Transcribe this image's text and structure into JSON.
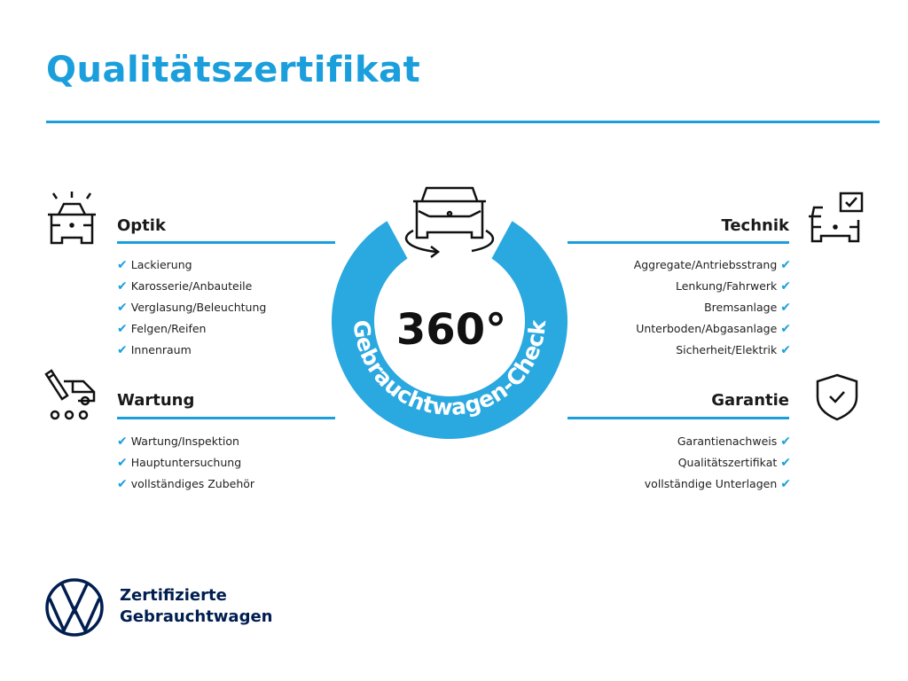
{
  "title": "Qualitätszertifikat",
  "colors": {
    "accent": "#1b9fdc",
    "ring": "#2aa8e0",
    "brand": "#001e50"
  },
  "badge": {
    "number": "360°",
    "ring_text": "Gebrauchtwagen-Check",
    "icon": "car-rotate-icon"
  },
  "sections": {
    "optik": {
      "heading": "Optik",
      "icon": "car-lights-icon",
      "items": [
        "Lackierung",
        "Karosserie/Anbauteile",
        "Verglasung/Beleuchtung",
        "Felgen/Reifen",
        "Innenraum"
      ]
    },
    "wartung": {
      "heading": "Wartung",
      "icon": "service-van-icon",
      "items": [
        "Wartung/Inspektion",
        "Hauptuntersuchung",
        "vollständiges Zubehör"
      ]
    },
    "technik": {
      "heading": "Technik",
      "icon": "car-checkbox-icon",
      "items": [
        "Aggregate/Antriebsstrang",
        "Lenkung/Fahrwerk",
        "Bremsanlage",
        "Unterboden/Abgasanlage",
        "Sicherheit/Elektrik"
      ]
    },
    "garantie": {
      "heading": "Garantie",
      "icon": "shield-check-icon",
      "items": [
        "Garantienachweis",
        "Qualitätszertifikat",
        "vollständige Unterlagen"
      ]
    }
  },
  "check_glyph": "✔",
  "brand": {
    "line1": "Zertifizierte",
    "line2": "Gebrauchtwagen",
    "logo": "VW"
  }
}
